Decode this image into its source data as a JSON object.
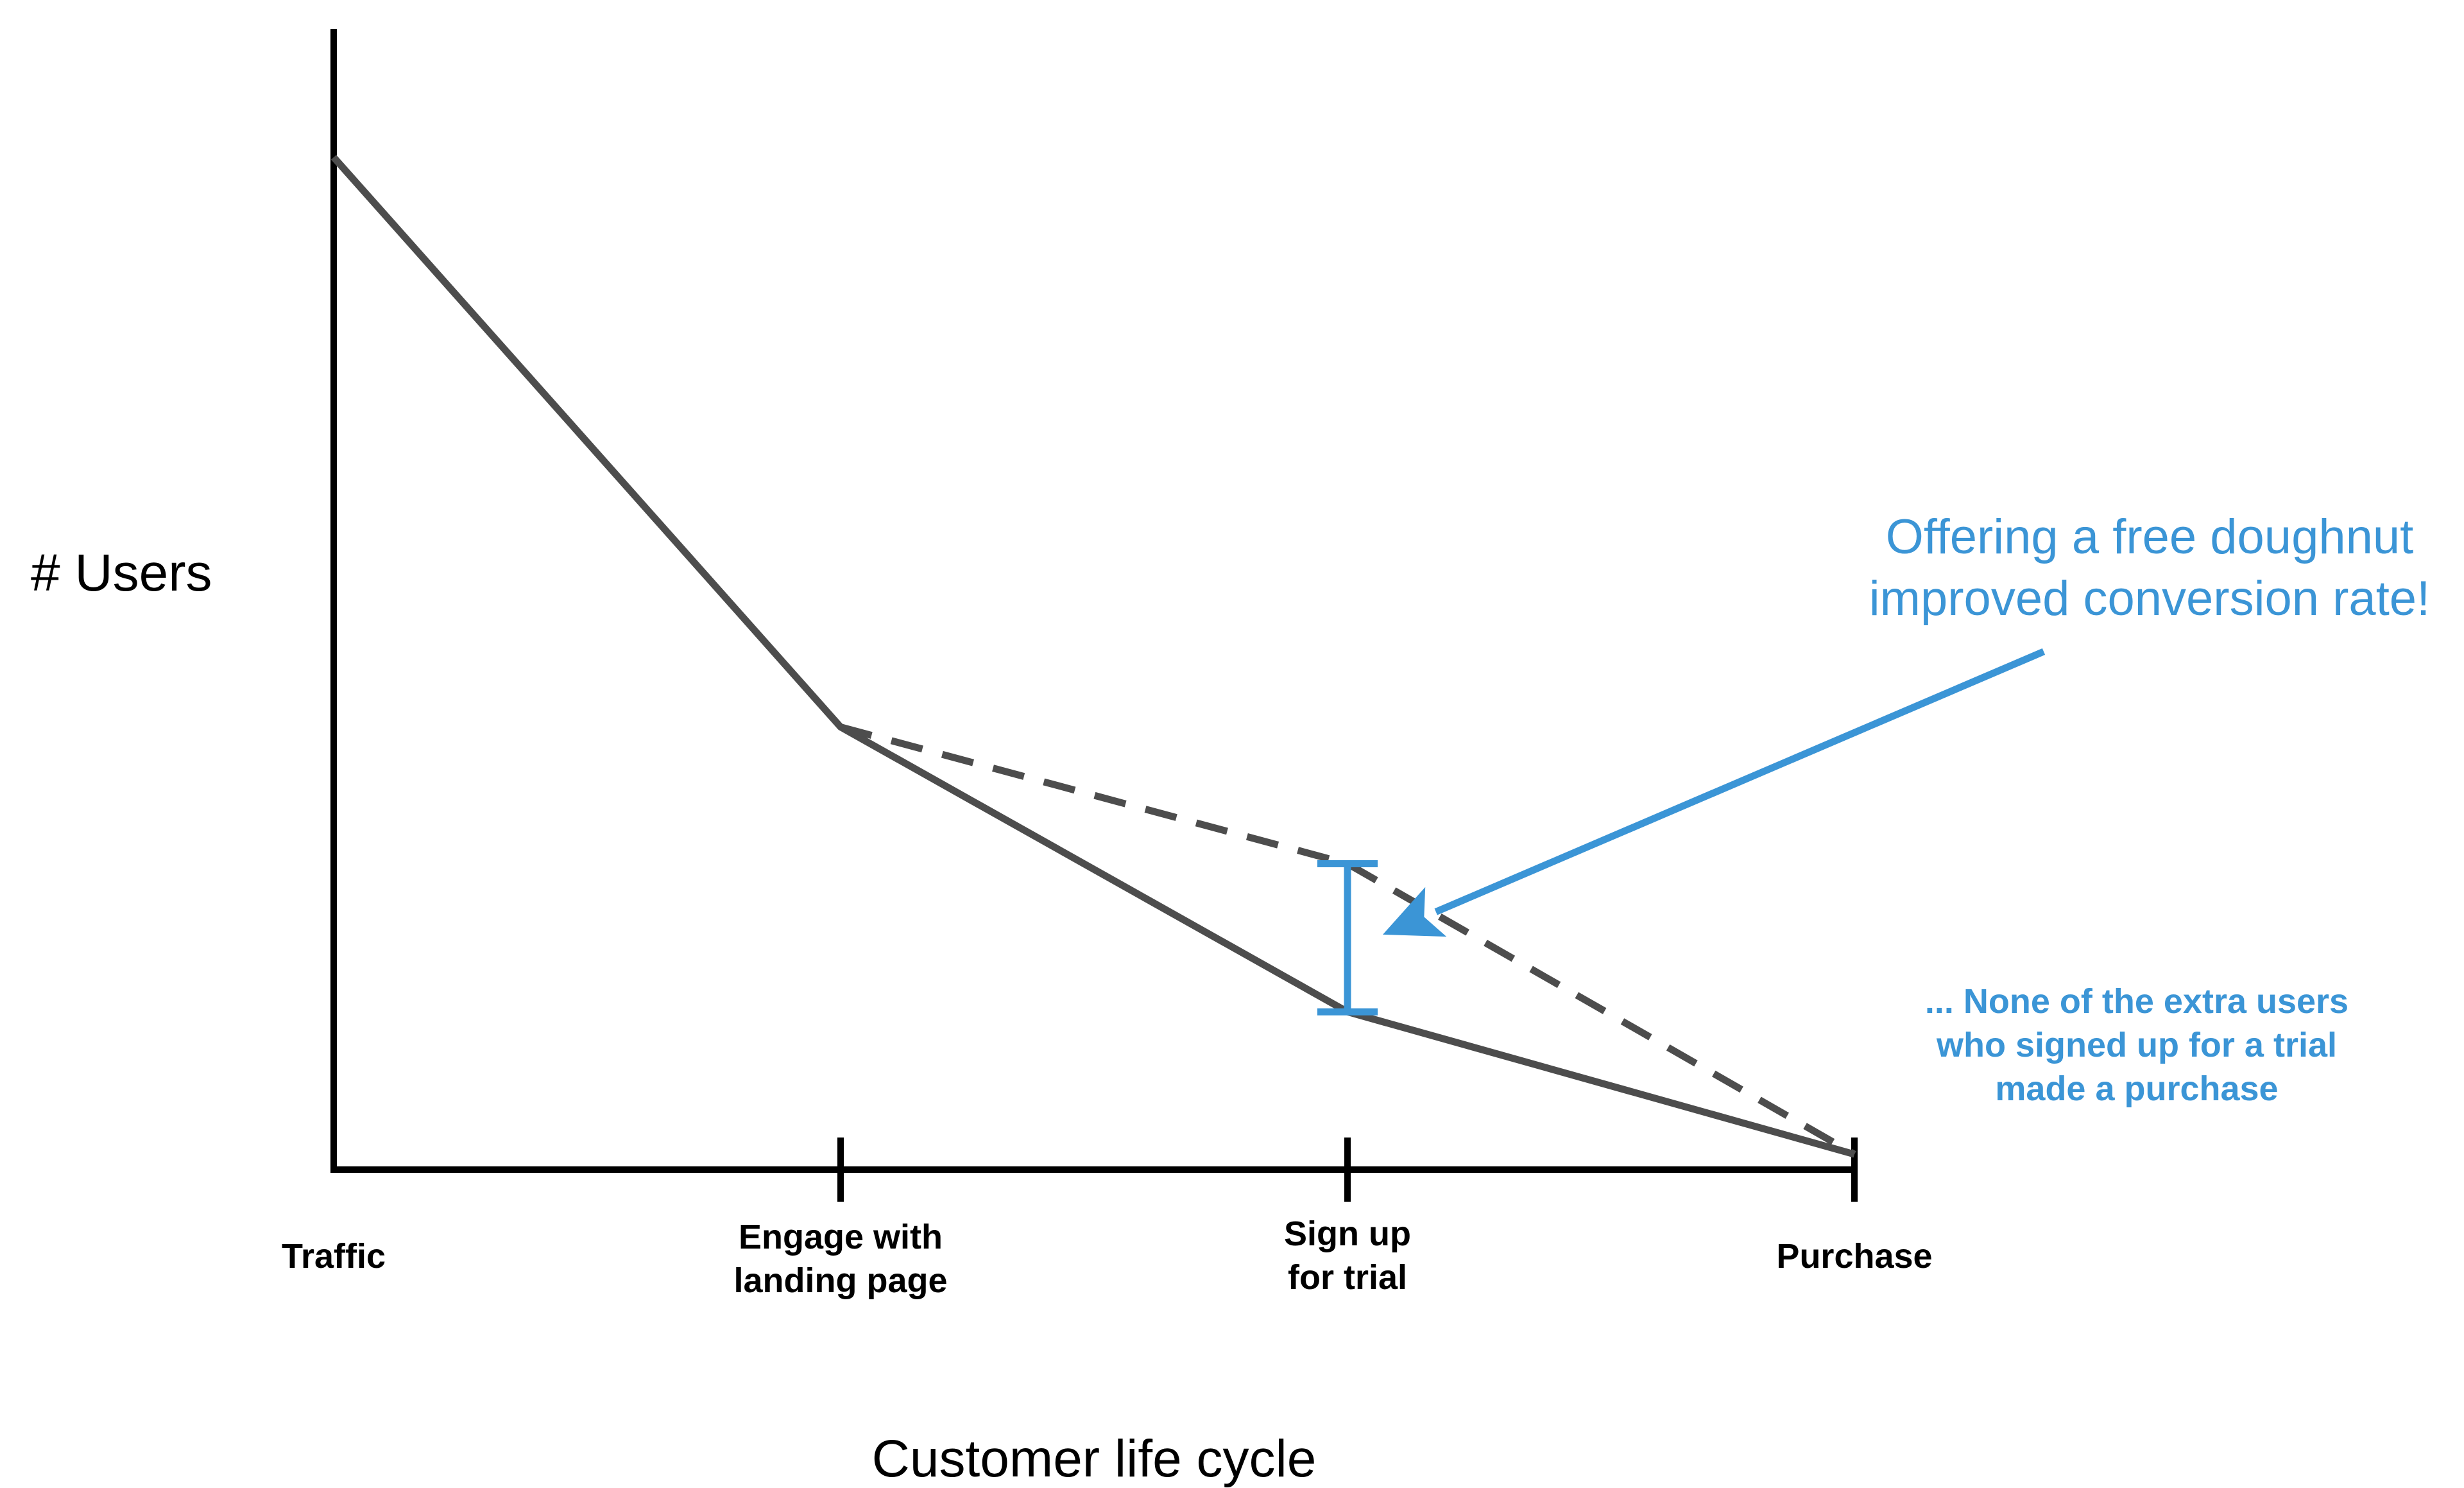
{
  "chart_data": {
    "type": "line",
    "categories": [
      "Traffic",
      "Engage with\nlanding page",
      "Sign up\nfor trial",
      "Purchase"
    ],
    "ylabel": "# Users",
    "xlabel": "Customer life cycle",
    "ylim": [
      0,
      100
    ],
    "series": [
      {
        "style": "solid",
        "values": [
          100,
          50,
          25,
          12.5
        ]
      },
      {
        "style": "dashed",
        "values": [
          null,
          50,
          38,
          12.5
        ]
      }
    ],
    "annotations": [
      {
        "text": "Offering a free doughnut\nimproved conversion rate!",
        "target": {
          "category": 2,
          "y": 31.5
        },
        "color": "#3b95d6"
      },
      {
        "text": "... None of the extra users\nwho signed up for a trial\nmade a purchase",
        "color": "#3b95d6"
      }
    ],
    "bracket": {
      "category": 2,
      "from": 25,
      "to": 38,
      "color": "#3b95d6"
    },
    "colors": {
      "line": "#4d4d4d",
      "axis": "#000000",
      "accent": "#3b95d6"
    },
    "grid": false,
    "legend": "none"
  }
}
